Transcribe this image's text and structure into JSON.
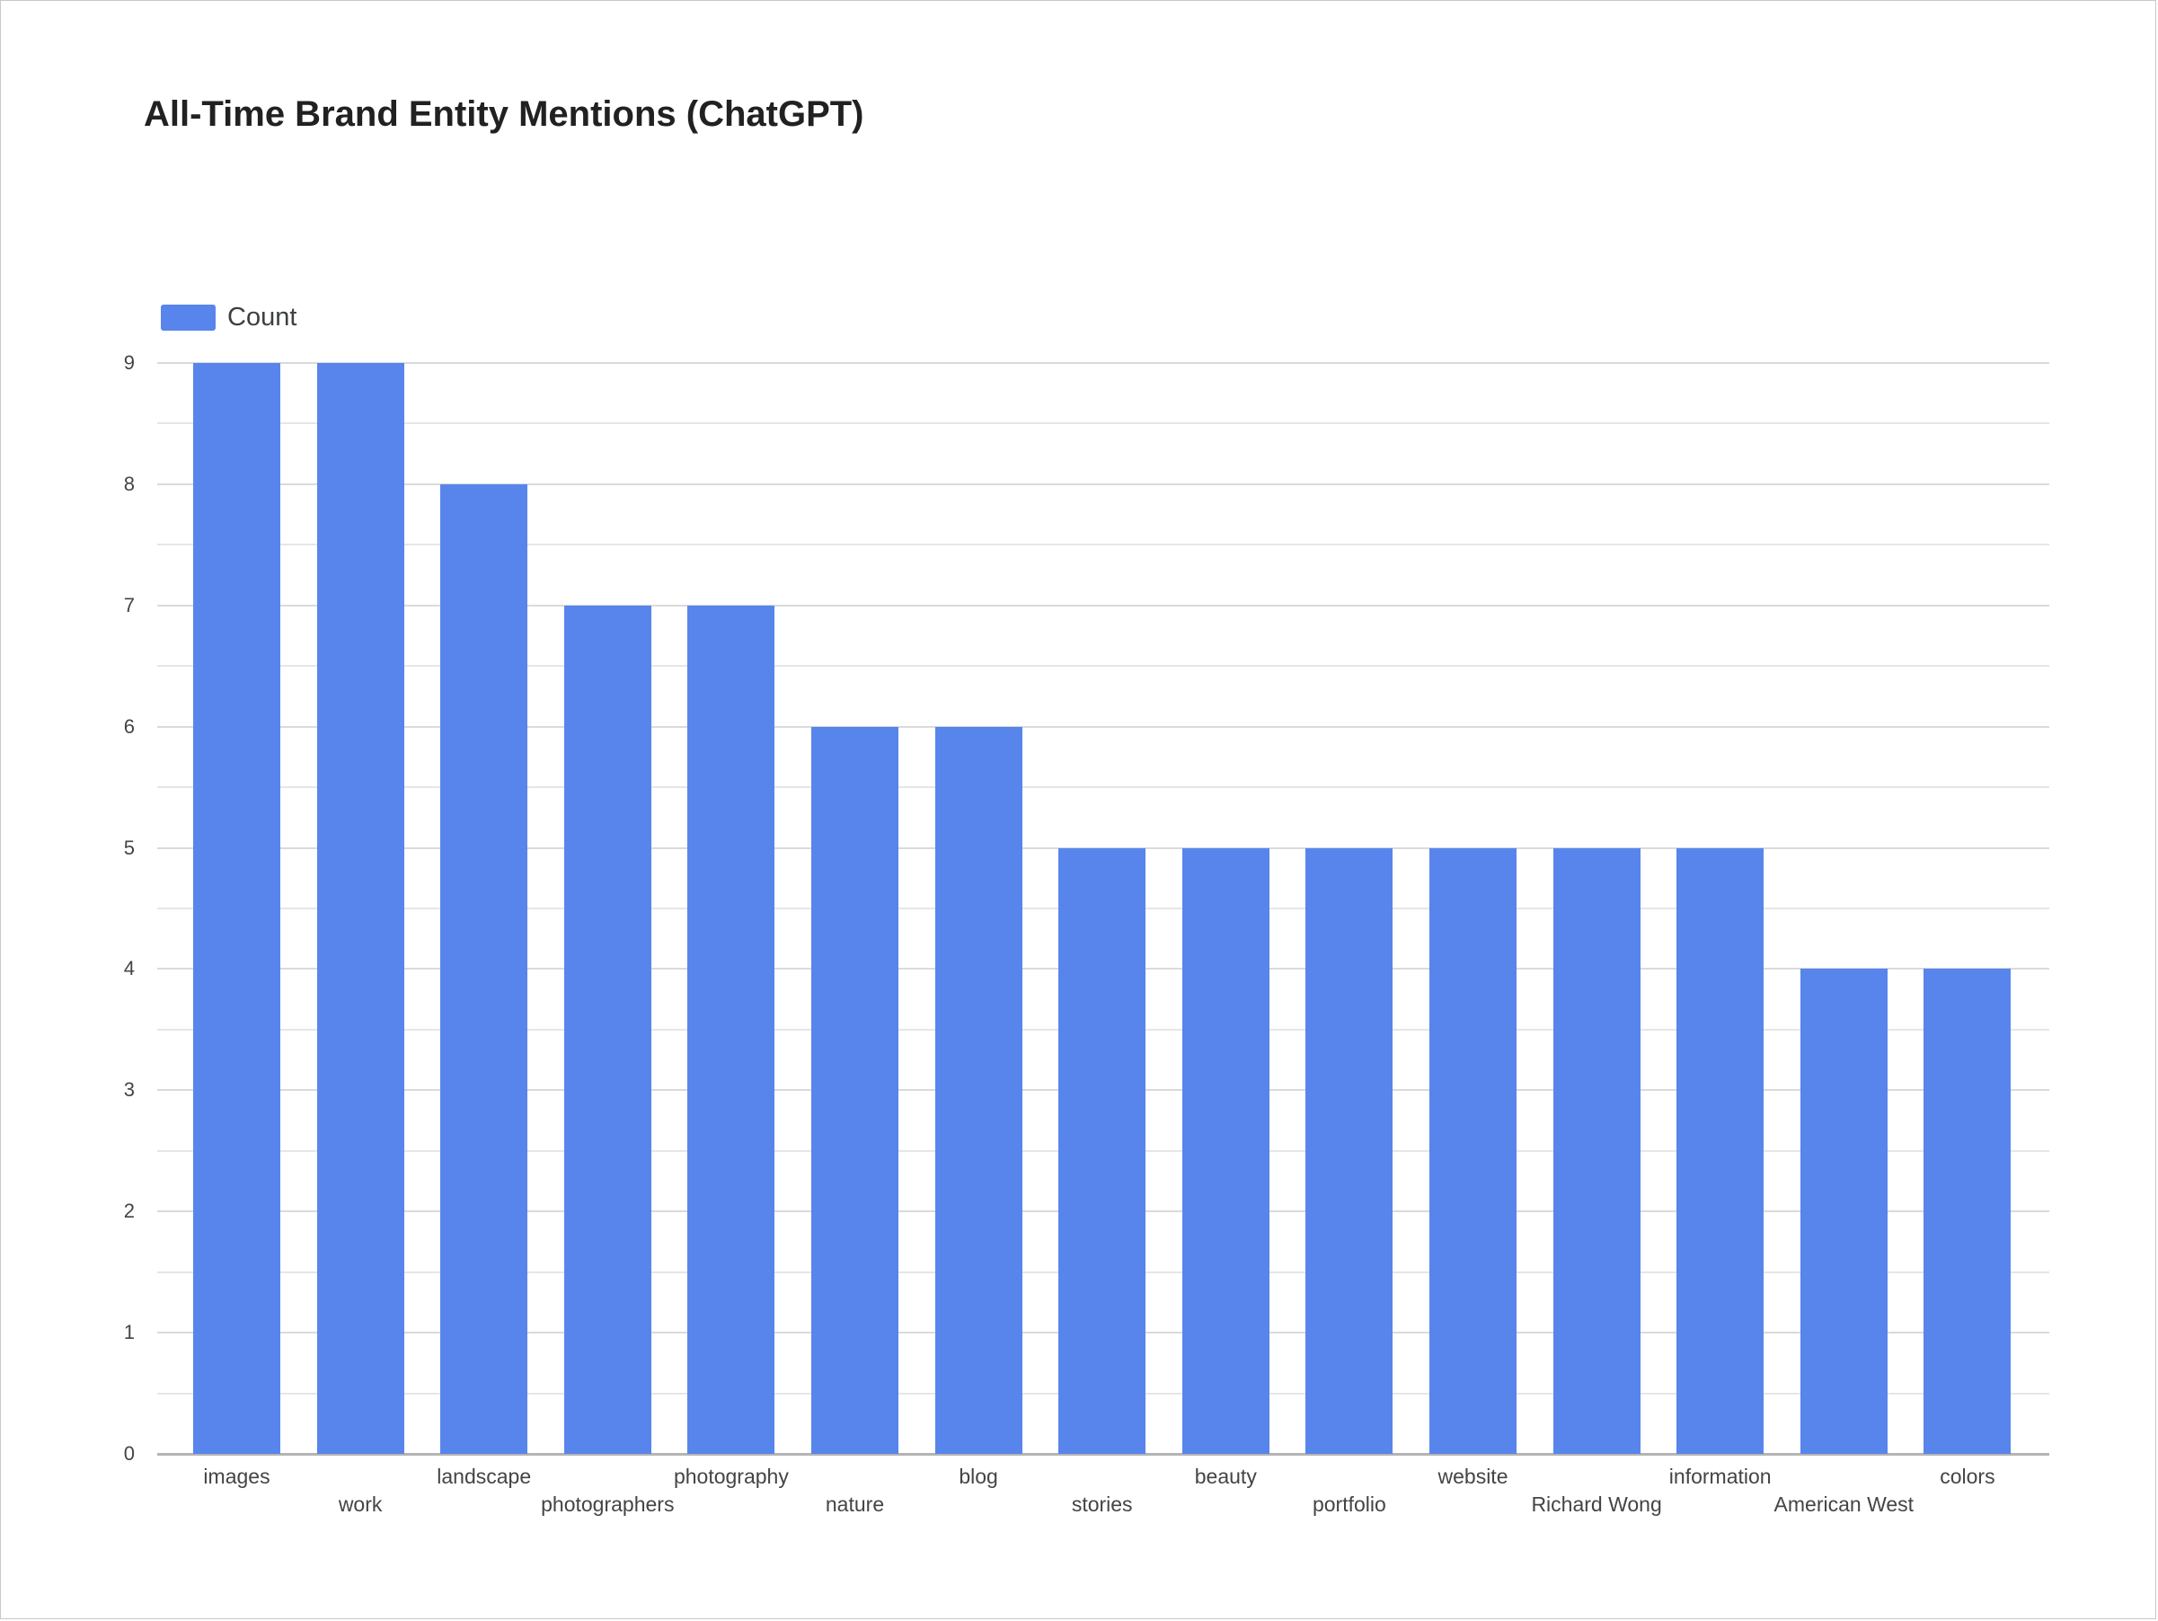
{
  "chart_data": {
    "type": "bar",
    "title": "All-Time Brand Entity Mentions (ChatGPT)",
    "xlabel": "",
    "ylabel": "",
    "legend": {
      "position": "top-left",
      "entries": [
        "Count"
      ]
    },
    "grid": true,
    "ylim": [
      0,
      9
    ],
    "yticks": [
      0,
      1,
      2,
      3,
      4,
      5,
      6,
      7,
      8,
      9
    ],
    "categories": [
      "images",
      "work",
      "landscape",
      "photographers",
      "photography",
      "nature",
      "blog",
      "stories",
      "beauty",
      "portfolio",
      "website",
      "Richard Wong",
      "information",
      "American West",
      "colors"
    ],
    "series": [
      {
        "name": "Count",
        "color": "#5885ec",
        "values": [
          9,
          9,
          8,
          7,
          7,
          6,
          6,
          5,
          5,
          5,
          5,
          5,
          5,
          4,
          4
        ]
      }
    ]
  },
  "colors": {
    "bar": "#5885ec",
    "title": "#212121",
    "text": "#444444",
    "grid": "#dadada",
    "axis": "#b4b4b4"
  }
}
